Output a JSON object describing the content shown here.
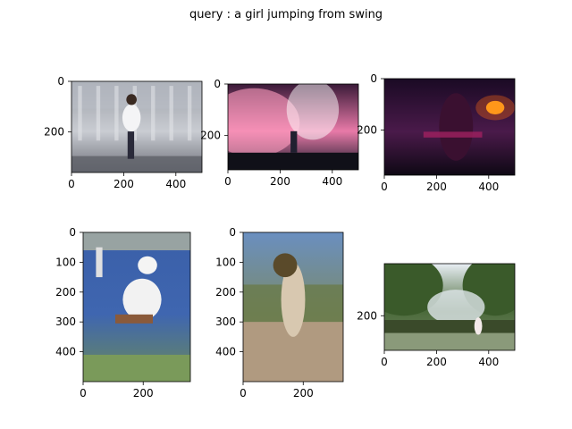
{
  "figure": {
    "suptitle": "query : a girl jumping from swing"
  },
  "chart_data": [
    {
      "type": "image",
      "panel": "top-left",
      "image_width_units": 500,
      "image_height_units": 360,
      "xticks": [
        "0",
        "200",
        "400"
      ],
      "xtick_values": [
        0,
        200,
        400
      ],
      "yticks": [
        "0",
        "200"
      ],
      "ytick_values": [
        0,
        200
      ],
      "content": "girl-in-white-coat-fountain-plaza",
      "colors": {
        "top": "#9a9ea6",
        "middle": "#c9ccd2",
        "bottom": "#6e7079"
      }
    },
    {
      "type": "image",
      "panel": "top-middle",
      "image_width_units": 500,
      "image_height_units": 333,
      "xticks": [
        "0",
        "200",
        "400"
      ],
      "xtick_values": [
        0,
        200,
        400
      ],
      "yticks": [
        "0",
        "200"
      ],
      "ytick_values": [
        0,
        200
      ],
      "content": "concert-stage-pink-lights",
      "colors": {
        "top": "#3a1a38",
        "middle": "#e87aa8",
        "bottom": "#1a1a2a"
      }
    },
    {
      "type": "image",
      "panel": "top-right",
      "image_width_units": 500,
      "image_height_units": 375,
      "xticks": [
        "0",
        "200",
        "400"
      ],
      "xtick_values": [
        0,
        200,
        400
      ],
      "yticks": [
        "0",
        "200"
      ],
      "ytick_values": [
        0,
        200
      ],
      "content": "guitarist-dark-stage",
      "colors": {
        "top": "#1a0a24",
        "middle": "#4a1a4a",
        "bottom": "#0e0814"
      }
    },
    {
      "type": "image",
      "panel": "bottom-left",
      "image_width_units": 357,
      "image_height_units": 500,
      "xticks": [
        "0",
        "200"
      ],
      "xtick_values": [
        0,
        200
      ],
      "yticks": [
        "0",
        "100",
        "200",
        "300",
        "400"
      ],
      "ytick_values": [
        0,
        100,
        200,
        300,
        400
      ],
      "content": "tennis-player-white-dress",
      "colors": {
        "top": "#3a5fa8",
        "middle": "#3f66b0",
        "bottom": "#6a8a5a"
      }
    },
    {
      "type": "image",
      "panel": "bottom-middle",
      "image_width_units": 333,
      "image_height_units": 500,
      "xticks": [
        "0",
        "200"
      ],
      "xtick_values": [
        0,
        200
      ],
      "yticks": [
        "0",
        "100",
        "200",
        "300",
        "400"
      ],
      "ytick_values": [
        0,
        100,
        200,
        300,
        400
      ],
      "content": "dog-jumping-on-beach",
      "colors": {
        "top": "#6a8fc0",
        "middle": "#7a8a6a",
        "bottom": "#a08a70"
      }
    },
    {
      "type": "image",
      "panel": "bottom-right",
      "image_width_units": 500,
      "image_height_units": 333,
      "xticks": [
        "0",
        "200",
        "400"
      ],
      "xtick_values": [
        0,
        200,
        400
      ],
      "yticks": [
        "200"
      ],
      "ytick_values": [
        200
      ],
      "content": "girl-near-park-fountain",
      "colors": {
        "top": "#e8eef4",
        "middle": "#4a6a3a",
        "bottom": "#7a8a6a"
      }
    }
  ]
}
